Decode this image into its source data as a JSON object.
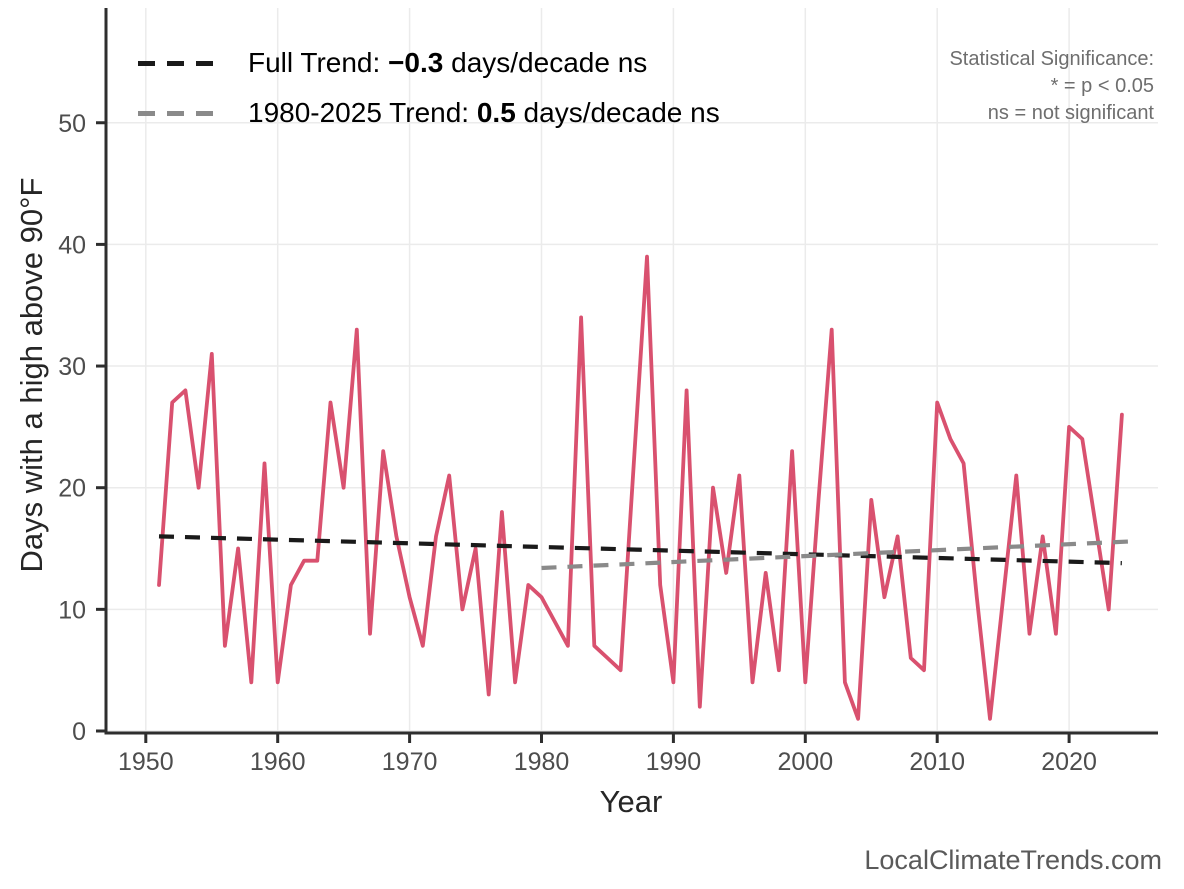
{
  "legend": {
    "items": [
      {
        "label_prefix": "Full Trend: ",
        "value": "−0.3",
        "label_suffix": " days/decade ns",
        "color": "#1a1a1a"
      },
      {
        "label_prefix": "1980-2025 Trend: ",
        "value": "0.5",
        "label_suffix": " days/decade ns",
        "color": "#8a8a8a"
      }
    ]
  },
  "stat_note": {
    "line1": "Statistical Significance:",
    "line2": "* = p < 0.05",
    "line3": "ns = not significant"
  },
  "footer": {
    "text": "LocalClimateTrends.com"
  },
  "colors": {
    "series_line": "#d9516f",
    "full_trend": "#1a1a1a",
    "recent_trend": "#8a8a8a",
    "axis": "#2e2e2e",
    "tick_label": "#4d4d4d",
    "grid": "#ebebeb"
  },
  "chart_data": {
    "type": "line",
    "title": "",
    "xlabel": "Year",
    "ylabel": "Days with a high above 90°F",
    "series_name": "Days with a high above 90°F per year",
    "x": [
      1951,
      1952,
      1953,
      1954,
      1955,
      1956,
      1957,
      1958,
      1959,
      1960,
      1961,
      1962,
      1963,
      1964,
      1965,
      1966,
      1967,
      1968,
      1969,
      1970,
      1971,
      1972,
      1973,
      1974,
      1975,
      1976,
      1977,
      1978,
      1979,
      1980,
      1981,
      1982,
      1983,
      1984,
      1985,
      1986,
      1987,
      1988,
      1989,
      1990,
      1991,
      1992,
      1993,
      1994,
      1995,
      1996,
      1997,
      1998,
      1999,
      2000,
      2001,
      2002,
      2003,
      2004,
      2005,
      2006,
      2007,
      2008,
      2009,
      2010,
      2011,
      2012,
      2013,
      2014,
      2015,
      2016,
      2017,
      2018,
      2019,
      2020,
      2021,
      2022,
      2023,
      2024
    ],
    "values": [
      12,
      27,
      28,
      20,
      31,
      7,
      15,
      4,
      22,
      4,
      12,
      14,
      14,
      27,
      20,
      33,
      8,
      23,
      16,
      11,
      7,
      16,
      21,
      10,
      15,
      3,
      18,
      4,
      12,
      11,
      9,
      7,
      34,
      7,
      6,
      5,
      22,
      39,
      12,
      4,
      28,
      2,
      20,
      13,
      21,
      4,
      13,
      5,
      23,
      4,
      19,
      33,
      4,
      1,
      19,
      11,
      16,
      6,
      5,
      27,
      24,
      22,
      11,
      1,
      11,
      21,
      8,
      16,
      8,
      25,
      24,
      17,
      10,
      26
    ],
    "line_color": "#d9516f",
    "trend_lines": [
      {
        "name": "full-trend",
        "label": "Full Trend: −0.3 days/decade ns",
        "x": [
          1951,
          2024
        ],
        "y": [
          16.0,
          13.8
        ],
        "color": "#1a1a1a",
        "style": "dashed"
      },
      {
        "name": "recent-trend",
        "label": "1980-2025 Trend: 0.5 days/decade ns",
        "x": [
          1980,
          2025
        ],
        "y": [
          13.4,
          15.6
        ],
        "color": "#8a8a8a",
        "style": "dashed"
      }
    ],
    "x_ticks": [
      1950,
      1960,
      1970,
      1980,
      1990,
      2000,
      2010,
      2020
    ],
    "x_tick_labels": [
      "1950",
      "1960",
      "1970",
      "1980",
      "1990",
      "2000",
      "2010",
      "2020"
    ],
    "y_ticks": [
      0,
      10,
      20,
      30,
      40,
      50
    ],
    "y_tick_labels": [
      "0",
      "10",
      "20",
      "30",
      "40",
      "50"
    ],
    "xlim": [
      1947,
      2026.5
    ],
    "ylim": [
      0,
      59
    ],
    "grid": true,
    "legend_position": "top-left"
  }
}
